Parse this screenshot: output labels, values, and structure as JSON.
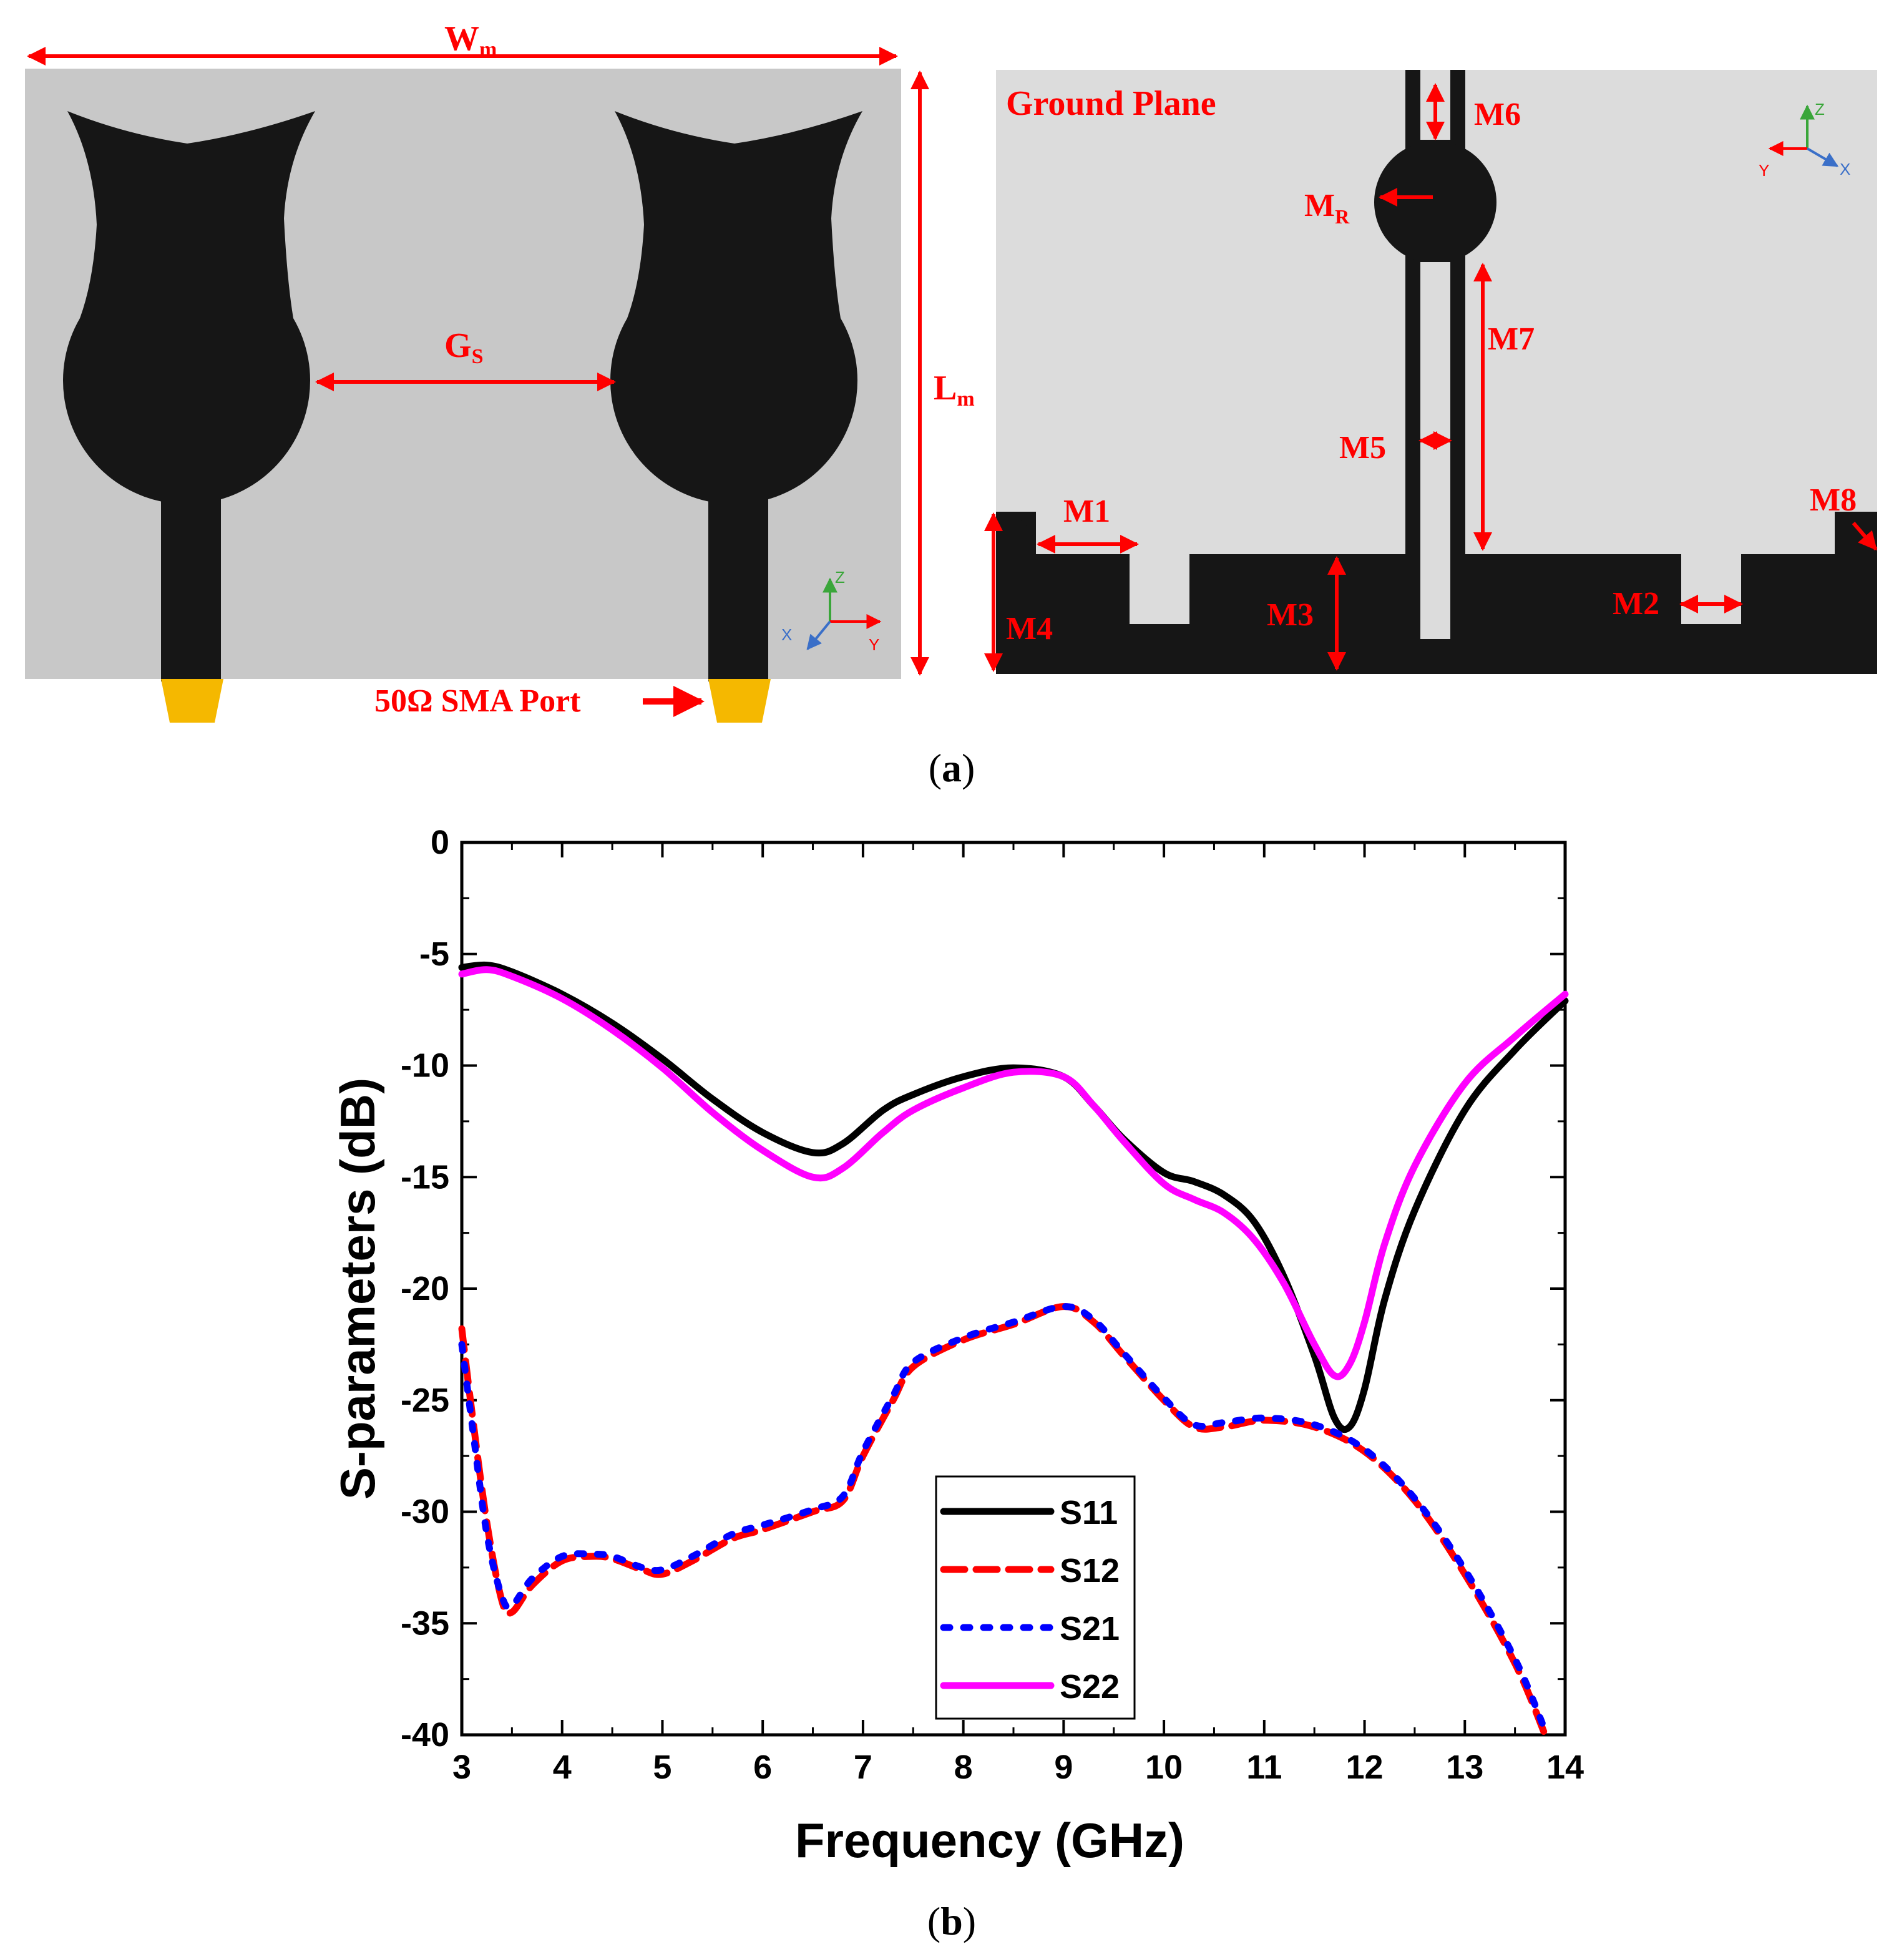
{
  "colors": {
    "substrate": "#c8c8c8",
    "ground_plane": "#dcdcdc",
    "metal": "#161616",
    "port": "#f5b800",
    "dimension": "#ff0000",
    "axis_y": "#ff0000",
    "axis_z": "#3aa63a",
    "axis_x": "#3a6fc8"
  },
  "panel_a": {
    "label_open": "(",
    "label_letter": "a",
    "label_close": ")",
    "front": {
      "width_symbol": "W",
      "width_sub": "m",
      "length_symbol": "L",
      "length_sub": "m",
      "gap_symbol": "G",
      "gap_sub": "S",
      "port_label": "50Ω SMA Port",
      "axes": {
        "z": "Z",
        "x": "X",
        "y": "Y"
      }
    },
    "back": {
      "title": "Ground Plane",
      "dims": {
        "m1": "M1",
        "m2": "M2",
        "m3": "M3",
        "m4": "M4",
        "m5": "M5",
        "m6": "M6",
        "m7": "M7",
        "m8": "M8",
        "mr_symbol": "M",
        "mr_sub": "R"
      },
      "axes": {
        "z": "Z",
        "y": "Y",
        "x": "X"
      }
    }
  },
  "panel_b": {
    "label_open": "(",
    "label_letter": "b",
    "label_close": ")"
  },
  "chart_data": {
    "type": "line",
    "title": "",
    "xlabel": "Frequency (GHz)",
    "ylabel": "S-parameters (dB)",
    "xlim": [
      3,
      14
    ],
    "ylim": [
      -40,
      0
    ],
    "xticks": [
      3,
      4,
      5,
      6,
      7,
      8,
      9,
      10,
      11,
      12,
      13,
      14
    ],
    "yticks": [
      0,
      -5,
      -10,
      -15,
      -20,
      -25,
      -30,
      -35,
      -40
    ],
    "xtick_labels": [
      "3",
      "4",
      "5",
      "6",
      "7",
      "8",
      "9",
      "10",
      "11",
      "12",
      "13",
      "14"
    ],
    "ytick_labels": [
      "0",
      "-5",
      "-10",
      "-15",
      "-20",
      "-25",
      "-30",
      "-35",
      "-40"
    ],
    "legend_position": "bottom-center",
    "series": [
      {
        "name": "S11",
        "color": "#000000",
        "style": "solid",
        "x": [
          3,
          3.25,
          3.5,
          4,
          4.5,
          5,
          5.5,
          6,
          6.5,
          6.8,
          7.2,
          7.5,
          8,
          8.5,
          9,
          9.3,
          9.6,
          10,
          10.3,
          10.6,
          10.9,
          11.2,
          11.5,
          11.7,
          11.85,
          12,
          12.2,
          12.5,
          13,
          13.5,
          14
        ],
        "y": [
          -5.6,
          -5.5,
          -5.8,
          -6.8,
          -8.1,
          -9.7,
          -11.5,
          -13.0,
          -13.9,
          -13.5,
          -12.0,
          -11.3,
          -10.5,
          -10.1,
          -10.5,
          -11.8,
          -13.3,
          -14.8,
          -15.2,
          -15.8,
          -17.0,
          -19.5,
          -23.0,
          -25.8,
          -26.2,
          -24.5,
          -20.5,
          -16.5,
          -12.0,
          -9.3,
          -7.1
        ]
      },
      {
        "name": "S12",
        "color": "#ff0000",
        "style": "dashed",
        "x": [
          3,
          3.1,
          3.25,
          3.4,
          3.5,
          3.7,
          4,
          4.3,
          4.5,
          4.8,
          5,
          5.3,
          5.7,
          6,
          6.5,
          6.8,
          7,
          7.3,
          7.5,
          8,
          8.5,
          9,
          9.3,
          9.6,
          10,
          10.3,
          10.6,
          11,
          11.5,
          12,
          12.5,
          13,
          13.5,
          13.8
        ],
        "y": [
          -21.8,
          -25.5,
          -30.5,
          -34.0,
          -34.5,
          -33.3,
          -32.2,
          -32.0,
          -32.1,
          -32.6,
          -32.8,
          -32.2,
          -31.2,
          -30.8,
          -30.0,
          -29.5,
          -27.5,
          -25.0,
          -23.5,
          -22.3,
          -21.6,
          -20.8,
          -21.5,
          -23.0,
          -25.0,
          -26.2,
          -26.2,
          -25.9,
          -26.2,
          -27.3,
          -29.5,
          -32.8,
          -36.8,
          -40.0
        ]
      },
      {
        "name": "S21",
        "color": "#0000ff",
        "style": "dotted",
        "x": [
          3,
          3.1,
          3.25,
          3.4,
          3.5,
          3.7,
          4,
          4.3,
          4.5,
          4.8,
          5,
          5.3,
          5.7,
          6,
          6.5,
          6.8,
          7,
          7.3,
          7.5,
          8,
          8.5,
          9,
          9.3,
          9.6,
          10,
          10.3,
          10.6,
          11,
          11.5,
          12,
          12.5,
          13,
          13.5,
          13.8
        ],
        "y": [
          -22.5,
          -26.0,
          -31.0,
          -33.8,
          -34.2,
          -33.0,
          -32.0,
          -31.9,
          -32.0,
          -32.5,
          -32.6,
          -32.0,
          -31.0,
          -30.6,
          -29.9,
          -29.3,
          -27.3,
          -24.8,
          -23.3,
          -22.2,
          -21.5,
          -20.8,
          -21.4,
          -22.9,
          -24.9,
          -26.1,
          -26.0,
          -25.8,
          -26.1,
          -27.2,
          -29.4,
          -32.6,
          -36.6,
          -39.8
        ]
      },
      {
        "name": "S22",
        "color": "#ff00ff",
        "style": "solid",
        "x": [
          3,
          3.25,
          3.5,
          4,
          4.5,
          5,
          5.5,
          6,
          6.5,
          6.8,
          7.2,
          7.5,
          8,
          8.5,
          9,
          9.3,
          9.6,
          10,
          10.3,
          10.6,
          10.9,
          11.2,
          11.5,
          11.7,
          11.85,
          12,
          12.2,
          12.5,
          13,
          13.5,
          14
        ],
        "y": [
          -5.9,
          -5.7,
          -6.0,
          -7.0,
          -8.4,
          -10.1,
          -12.1,
          -13.8,
          -15.0,
          -14.6,
          -13.0,
          -12.0,
          -11.0,
          -10.3,
          -10.5,
          -11.8,
          -13.4,
          -15.3,
          -16.0,
          -16.6,
          -17.8,
          -19.8,
          -22.5,
          -23.9,
          -23.4,
          -21.5,
          -18.0,
          -14.5,
          -10.8,
          -8.7,
          -6.8
        ]
      }
    ]
  }
}
